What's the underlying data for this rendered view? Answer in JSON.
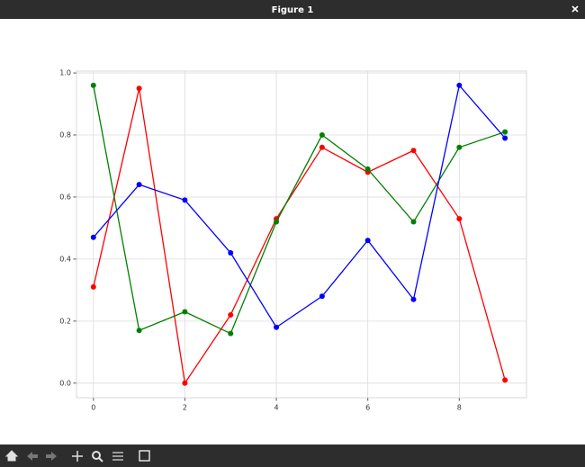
{
  "window": {
    "title": "Figure 1"
  },
  "chart_data": {
    "type": "line",
    "x": [
      0,
      1,
      2,
      3,
      4,
      5,
      6,
      7,
      8,
      9
    ],
    "series": [
      {
        "color": "#ff0000",
        "values": [
          0.31,
          0.95,
          0.0,
          0.22,
          0.53,
          0.76,
          0.68,
          0.75,
          0.53,
          0.01
        ]
      },
      {
        "color": "#008000",
        "values": [
          0.96,
          0.17,
          0.23,
          0.16,
          0.52,
          0.8,
          0.69,
          0.52,
          0.76,
          0.81
        ]
      },
      {
        "color": "#0000ff",
        "values": [
          0.47,
          0.64,
          0.59,
          0.42,
          0.18,
          0.28,
          0.46,
          0.27,
          0.96,
          0.79
        ]
      }
    ],
    "xlim": [
      -0.37,
      9.47
    ],
    "ylim": [
      -0.047,
      1.006
    ],
    "xticks": [
      0,
      2,
      4,
      6,
      8
    ],
    "yticks": [
      {
        "value": 0,
        "label": "0.0"
      },
      0.2,
      0.4,
      0.6,
      0.8,
      {
        "value": 1,
        "label": "1.0"
      }
    ],
    "grid": true
  }
}
